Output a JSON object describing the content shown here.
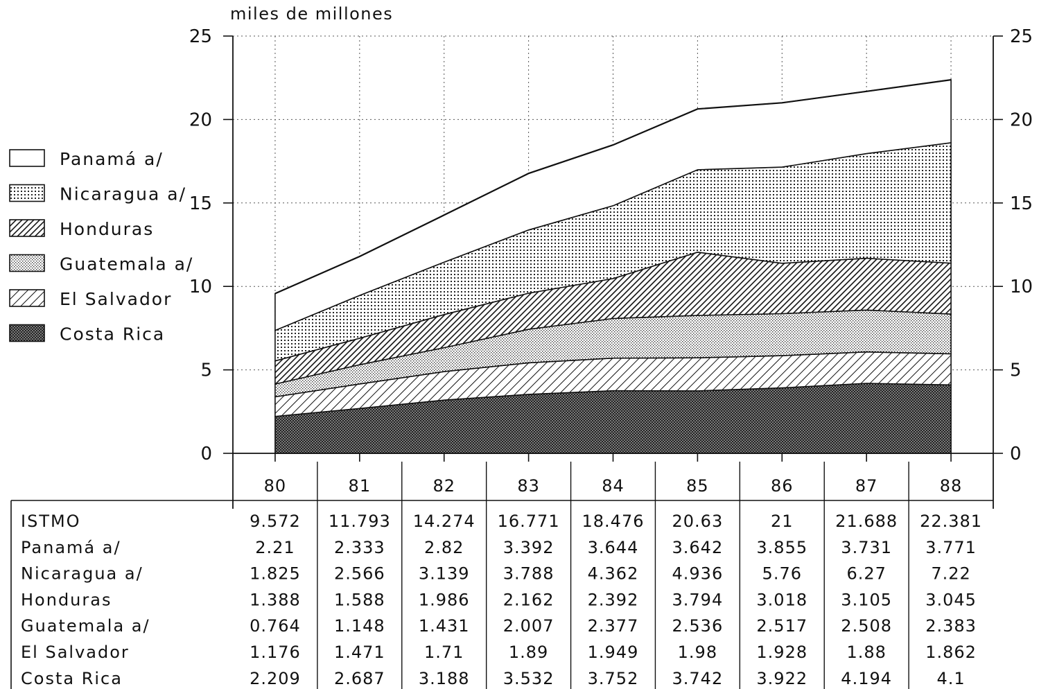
{
  "chart_data": {
    "type": "area",
    "stacked": true,
    "unit_label": "miles de millones",
    "ylim": [
      0,
      25
    ],
    "yticks": [
      "0",
      "5",
      "10",
      "15",
      "20",
      "25"
    ],
    "grid": true,
    "categories": [
      "80",
      "81",
      "82",
      "83",
      "84",
      "85",
      "86",
      "87",
      "88"
    ],
    "series": [
      {
        "name": "Costa Rica",
        "pattern": "dense-dots",
        "values": [
          2.209,
          2.687,
          3.188,
          3.532,
          3.752,
          3.742,
          3.922,
          4.194,
          4.1
        ]
      },
      {
        "name": "El Salvador",
        "pattern": "diagonal-hatch",
        "values": [
          1.176,
          1.471,
          1.71,
          1.89,
          1.949,
          1.98,
          1.928,
          1.88,
          1.862
        ]
      },
      {
        "name": "Guatemala a/",
        "pattern": "light-dots",
        "values": [
          0.764,
          1.148,
          1.431,
          2.007,
          2.377,
          2.536,
          2.517,
          2.508,
          2.383
        ]
      },
      {
        "name": "Honduras",
        "pattern": "dense-diagonal-hatch",
        "values": [
          1.388,
          1.588,
          1.986,
          2.162,
          2.392,
          3.794,
          3.018,
          3.105,
          3.045
        ]
      },
      {
        "name": "Nicaragua a/",
        "pattern": "grid-dots",
        "values": [
          1.825,
          2.566,
          3.139,
          3.788,
          4.362,
          4.936,
          5.76,
          6.27,
          7.22
        ]
      },
      {
        "name": "Panamá a/",
        "pattern": "white",
        "values": [
          2.21,
          2.333,
          2.82,
          3.392,
          3.644,
          3.642,
          3.855,
          3.731,
          3.771
        ]
      }
    ],
    "legend_order": [
      "Panamá a/",
      "Nicaragua a/",
      "Honduras",
      "Guatemala a/",
      "El Salvador",
      "Costa Rica"
    ],
    "table": {
      "rows": [
        {
          "label": "ISTMO",
          "values": [
            "9.572",
            "11.793",
            "14.274",
            "16.771",
            "18.476",
            "20.63",
            "21",
            "21.688",
            "22.381"
          ]
        },
        {
          "label": "Panamá a/",
          "values": [
            "2.21",
            "2.333",
            "2.82",
            "3.392",
            "3.644",
            "3.642",
            "3.855",
            "3.731",
            "3.771"
          ]
        },
        {
          "label": "Nicaragua a/",
          "values": [
            "1.825",
            "2.566",
            "3.139",
            "3.788",
            "4.362",
            "4.936",
            "5.76",
            "6.27",
            "7.22"
          ]
        },
        {
          "label": "Honduras",
          "values": [
            "1.388",
            "1.588",
            "1.986",
            "2.162",
            "2.392",
            "3.794",
            "3.018",
            "3.105",
            "3.045"
          ]
        },
        {
          "label": "Guatemala a/",
          "values": [
            "0.764",
            "1.148",
            "1.431",
            "2.007",
            "2.377",
            "2.536",
            "2.517",
            "2.508",
            "2.383"
          ]
        },
        {
          "label": "El Salvador",
          "values": [
            "1.176",
            "1.471",
            "1.71",
            "1.89",
            "1.949",
            "1.98",
            "1.928",
            "1.88",
            "1.862"
          ]
        },
        {
          "label": "Costa Rica",
          "values": [
            "2.209",
            "2.687",
            "3.188",
            "3.532",
            "3.752",
            "3.742",
            "3.922",
            "4.194",
            "4.1"
          ]
        }
      ]
    }
  }
}
